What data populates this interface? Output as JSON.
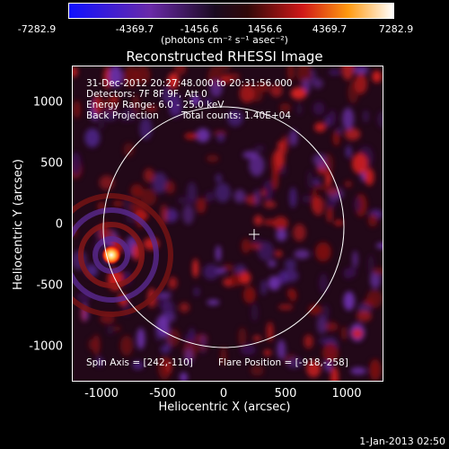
{
  "colorbar": {
    "ticks": [
      "-7282.9",
      "-4369.7",
      "-1456.6",
      "1456.6",
      "4369.7",
      "7282.9"
    ],
    "units": "(photons cm⁻² s⁻¹ asec⁻²)"
  },
  "title": "Reconstructed RHESSI Image",
  "info": {
    "time_range": "31-Dec-2012 20:27:48.000 to 20:31:56.000",
    "detectors": "Detectors: 7F 8F 9F, Att 0",
    "energy": "Energy Range: 6.0 - 25.0 keV",
    "method": "Back Projection",
    "counts": "Total counts: 1.40E+04",
    "spin_axis": "Spin Axis = [242,-110]",
    "flare_position": "Flare Position = [-918,-258]"
  },
  "axes": {
    "xlabel": "Heliocentric X (arcsec)",
    "ylabel": "Heliocentric Y (arcsec)",
    "xticks": [
      "-1000",
      "-500",
      "0",
      "500",
      "1000"
    ],
    "yticks": [
      "1000",
      "500",
      "0",
      "-500",
      "-1000"
    ]
  },
  "timestamp": "1-Jan-2013 02:50"
}
